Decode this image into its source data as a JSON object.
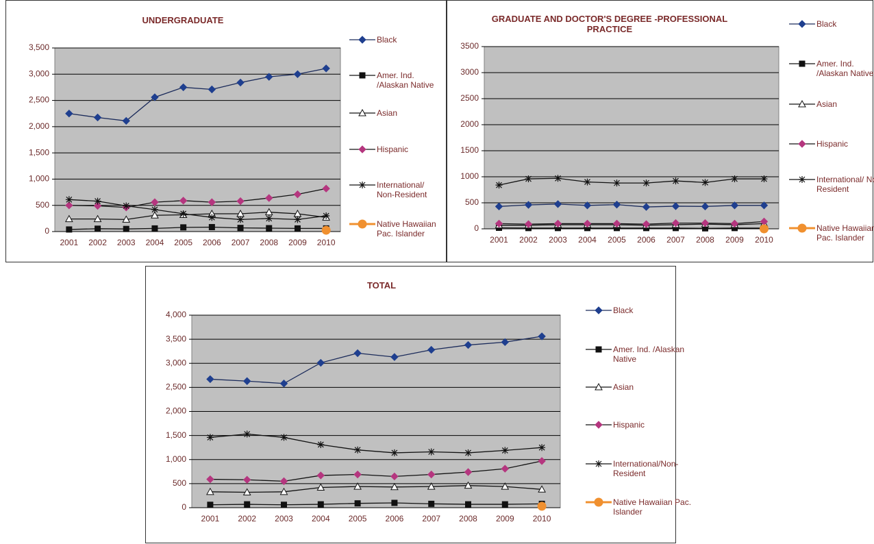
{
  "chart_data": [
    {
      "type": "line",
      "title": "UNDERGRADUATE",
      "categories": [
        "2001",
        "2002",
        "2003",
        "2004",
        "2005",
        "2006",
        "2007",
        "2008",
        "2009",
        "2010"
      ],
      "ylim": [
        0,
        3500
      ],
      "yticks": [
        0,
        {
          "value": 500,
          "label": "500"
        },
        {
          "value": 1000,
          "label": "1,000"
        },
        {
          "value": 1500,
          "label": "1,500"
        },
        {
          "value": 2000,
          "label": "2,000"
        },
        {
          "value": 2500,
          "label": "2,500"
        },
        {
          "value": 3000,
          "label": "3,000"
        },
        {
          "value": 3500,
          "label": "3,500"
        }
      ],
      "grid": true,
      "series": [
        {
          "name": "Black",
          "color": "#1f3f8f",
          "values": [
            2250,
            2175,
            2110,
            2560,
            2750,
            2710,
            2840,
            2950,
            3000,
            3110
          ]
        },
        {
          "name": "Amer. Ind. /Alaskan Native",
          "color": "#111111",
          "values": [
            40,
            55,
            50,
            60,
            80,
            85,
            70,
            65,
            60,
            60
          ]
        },
        {
          "name": "Asian",
          "color": "#ffffff",
          "values": [
            240,
            240,
            230,
            310,
            320,
            340,
            340,
            370,
            340,
            270
          ]
        },
        {
          "name": "Hispanic",
          "color": "#b5367f",
          "values": [
            500,
            490,
            460,
            560,
            590,
            560,
            580,
            640,
            710,
            820
          ]
        },
        {
          "name": "International/ Non-Resident",
          "color": "#111111",
          "values": [
            610,
            580,
            490,
            420,
            340,
            270,
            230,
            250,
            230,
            300
          ]
        },
        {
          "name": "Native Hawaiian Pac. Islander",
          "color": "#f0902f",
          "values": [
            null,
            null,
            null,
            null,
            null,
            null,
            null,
            null,
            null,
            25
          ]
        }
      ]
    },
    {
      "type": "line",
      "title": "GRADUATE AND DOCTOR'S DEGREE -PROFESSIONAL PRACTICE",
      "categories": [
        "2001",
        "2002",
        "2003",
        "2004",
        "2005",
        "2006",
        "2007",
        "2008",
        "2009",
        "2010"
      ],
      "ylim": [
        0,
        3500
      ],
      "yticks": [
        0,
        500,
        1000,
        1500,
        2000,
        2500,
        3000,
        3500
      ],
      "grid": true,
      "series": [
        {
          "name": "Black",
          "color": "#1f3f8f",
          "values": [
            430,
            460,
            475,
            450,
            465,
            420,
            435,
            430,
            450,
            450
          ]
        },
        {
          "name": "Amer. Ind. /Alaskan Native",
          "color": "#111111",
          "values": [
            20,
            15,
            15,
            15,
            15,
            15,
            15,
            10,
            15,
            15
          ]
        },
        {
          "name": "Asian",
          "color": "#ffffff",
          "values": [
            70,
            70,
            80,
            80,
            80,
            70,
            80,
            90,
            80,
            100
          ]
        },
        {
          "name": "Hispanic",
          "color": "#b5367f",
          "values": [
            100,
            90,
            100,
            100,
            100,
            90,
            110,
            110,
            100,
            140
          ]
        },
        {
          "name": "International/ Non-Resident",
          "color": "#111111",
          "values": [
            840,
            960,
            970,
            900,
            880,
            880,
            920,
            890,
            960,
            960
          ]
        },
        {
          "name": "Native Hawaiian Pac. Islander",
          "color": "#f0902f",
          "values": [
            null,
            null,
            null,
            null,
            null,
            null,
            null,
            null,
            null,
            0
          ]
        }
      ]
    },
    {
      "type": "line",
      "title": "TOTAL",
      "categories": [
        "2001",
        "2002",
        "2003",
        "2004",
        "2005",
        "2006",
        "2007",
        "2008",
        "2009",
        "2010"
      ],
      "ylim": [
        0,
        4000
      ],
      "yticks": [
        0,
        {
          "value": 500,
          "label": "500"
        },
        {
          "value": 1000,
          "label": "1,000"
        },
        {
          "value": 1500,
          "label": "1,500"
        },
        {
          "value": 2000,
          "label": "2,000"
        },
        {
          "value": 2500,
          "label": "2,500"
        },
        {
          "value": 3000,
          "label": "3,000"
        },
        {
          "value": 3500,
          "label": "3,500"
        },
        {
          "value": 4000,
          "label": "4,000"
        }
      ],
      "grid": true,
      "series": [
        {
          "name": "Black",
          "color": "#1f3f8f",
          "values": [
            2670,
            2630,
            2580,
            3010,
            3210,
            3130,
            3280,
            3380,
            3440,
            3560
          ]
        },
        {
          "name": "Amer. Ind. /Alaskan Native",
          "color": "#111111",
          "values": [
            60,
            70,
            60,
            70,
            90,
            100,
            80,
            70,
            70,
            80
          ]
        },
        {
          "name": "Asian",
          "color": "#ffffff",
          "values": [
            330,
            320,
            330,
            420,
            440,
            430,
            440,
            460,
            440,
            380
          ]
        },
        {
          "name": "Hispanic",
          "color": "#b5367f",
          "values": [
            590,
            580,
            550,
            670,
            690,
            650,
            690,
            740,
            810,
            970
          ]
        },
        {
          "name": "International/Non-Resident",
          "color": "#111111",
          "values": [
            1460,
            1530,
            1460,
            1310,
            1200,
            1140,
            1160,
            1140,
            1190,
            1250
          ]
        },
        {
          "name": "Native Hawaiian Pac. Islander",
          "color": "#f0902f",
          "values": [
            null,
            null,
            null,
            null,
            null,
            null,
            null,
            null,
            null,
            30
          ]
        }
      ]
    }
  ]
}
